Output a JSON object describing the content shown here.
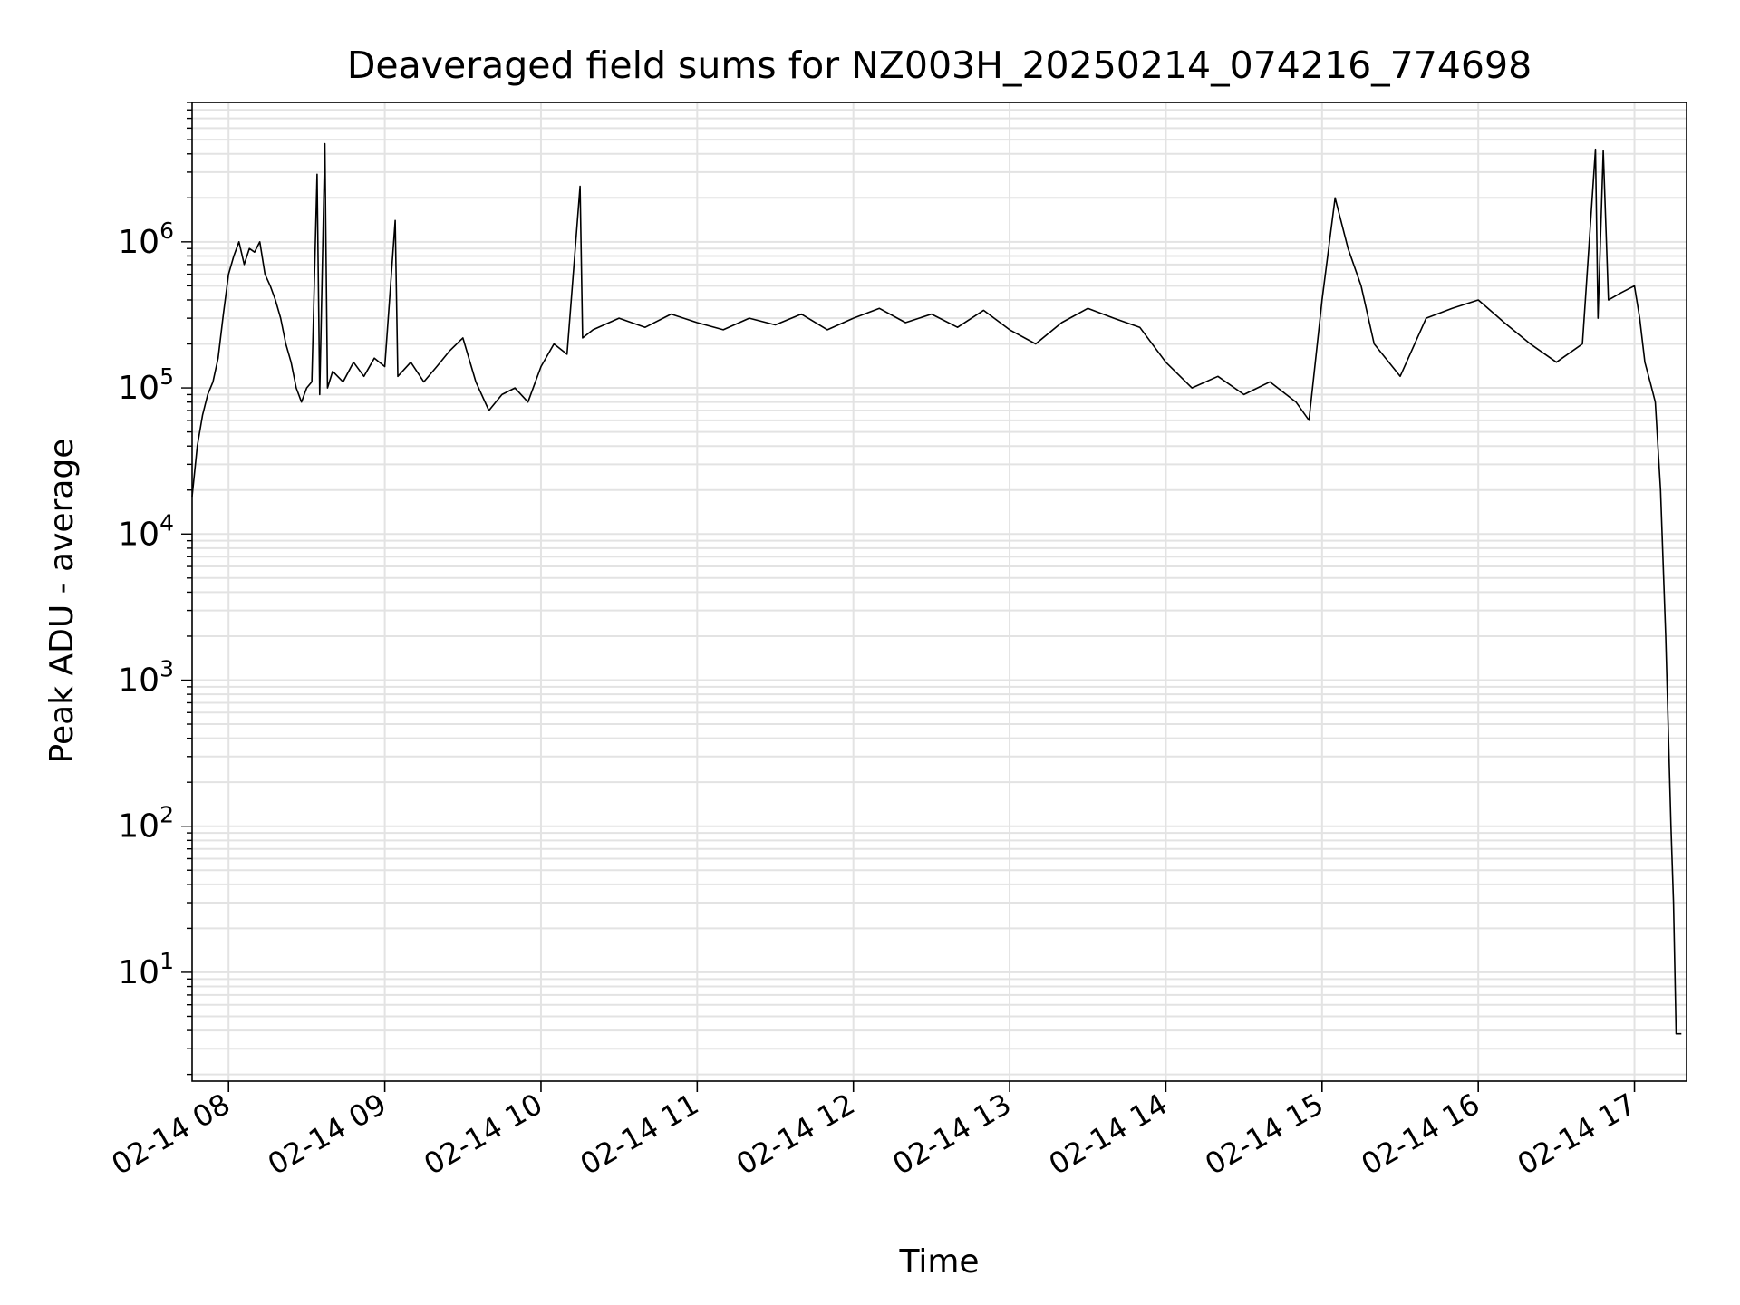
{
  "chart_data": {
    "type": "line",
    "title": "Deaveraged field sums for NZ003H_20250214_074216_774698",
    "xlabel": "Time",
    "ylabel": "Peak ADU - average",
    "yscale": "log",
    "grid": true,
    "legend": "none",
    "xlim": [
      "2025-02-14 07:46",
      "2025-02-14 17:20"
    ],
    "ylim": [
      1.8,
      9000000
    ],
    "x_ticks": [
      {
        "value": "2025-02-14 08:00",
        "label": "02-14 08"
      },
      {
        "value": "2025-02-14 09:00",
        "label": "02-14 09"
      },
      {
        "value": "2025-02-14 10:00",
        "label": "02-14 10"
      },
      {
        "value": "2025-02-14 11:00",
        "label": "02-14 11"
      },
      {
        "value": "2025-02-14 12:00",
        "label": "02-14 12"
      },
      {
        "value": "2025-02-14 13:00",
        "label": "02-14 13"
      },
      {
        "value": "2025-02-14 14:00",
        "label": "02-14 14"
      },
      {
        "value": "2025-02-14 15:00",
        "label": "02-14 15"
      },
      {
        "value": "2025-02-14 16:00",
        "label": "02-14 16"
      },
      {
        "value": "2025-02-14 17:00",
        "label": "02-14 17"
      }
    ],
    "y_ticks": [
      {
        "value": 10,
        "base": "10",
        "exp": "1"
      },
      {
        "value": 100,
        "base": "10",
        "exp": "2"
      },
      {
        "value": 1000,
        "base": "10",
        "exp": "3"
      },
      {
        "value": 10000,
        "base": "10",
        "exp": "4"
      },
      {
        "value": 100000,
        "base": "10",
        "exp": "5"
      },
      {
        "value": 1000000,
        "base": "10",
        "exp": "6"
      }
    ],
    "series": [
      {
        "color": "#000000",
        "points": [
          [
            "2025-02-14 07:46",
            18000
          ],
          [
            "2025-02-14 07:48",
            40000
          ],
          [
            "2025-02-14 07:50",
            65000
          ],
          [
            "2025-02-14 07:52",
            90000
          ],
          [
            "2025-02-14 07:54",
            110000
          ],
          [
            "2025-02-14 07:56",
            160000
          ],
          [
            "2025-02-14 07:58",
            320000
          ],
          [
            "2025-02-14 08:00",
            600000
          ],
          [
            "2025-02-14 08:02",
            800000
          ],
          [
            "2025-02-14 08:04",
            1000000
          ],
          [
            "2025-02-14 08:06",
            700000
          ],
          [
            "2025-02-14 08:08",
            900000
          ],
          [
            "2025-02-14 08:10",
            850000
          ],
          [
            "2025-02-14 08:12",
            1000000
          ],
          [
            "2025-02-14 08:14",
            600000
          ],
          [
            "2025-02-14 08:16",
            500000
          ],
          [
            "2025-02-14 08:18",
            400000
          ],
          [
            "2025-02-14 08:20",
            300000
          ],
          [
            "2025-02-14 08:22",
            200000
          ],
          [
            "2025-02-14 08:24",
            150000
          ],
          [
            "2025-02-14 08:26",
            100000
          ],
          [
            "2025-02-14 08:28",
            80000
          ],
          [
            "2025-02-14 08:30",
            100000
          ],
          [
            "2025-02-14 08:32",
            110000
          ],
          [
            "2025-02-14 08:34",
            2900000
          ],
          [
            "2025-02-14 08:35",
            90000
          ],
          [
            "2025-02-14 08:37",
            4700000
          ],
          [
            "2025-02-14 08:38",
            100000
          ],
          [
            "2025-02-14 08:40",
            130000
          ],
          [
            "2025-02-14 08:44",
            110000
          ],
          [
            "2025-02-14 08:48",
            150000
          ],
          [
            "2025-02-14 08:52",
            120000
          ],
          [
            "2025-02-14 08:56",
            160000
          ],
          [
            "2025-02-14 09:00",
            140000
          ],
          [
            "2025-02-14 09:04",
            1400000
          ],
          [
            "2025-02-14 09:05",
            120000
          ],
          [
            "2025-02-14 09:10",
            150000
          ],
          [
            "2025-02-14 09:15",
            110000
          ],
          [
            "2025-02-14 09:20",
            140000
          ],
          [
            "2025-02-14 09:25",
            180000
          ],
          [
            "2025-02-14 09:30",
            220000
          ],
          [
            "2025-02-14 09:35",
            110000
          ],
          [
            "2025-02-14 09:40",
            70000
          ],
          [
            "2025-02-14 09:45",
            90000
          ],
          [
            "2025-02-14 09:50",
            100000
          ],
          [
            "2025-02-14 09:55",
            80000
          ],
          [
            "2025-02-14 10:00",
            140000
          ],
          [
            "2025-02-14 10:05",
            200000
          ],
          [
            "2025-02-14 10:10",
            170000
          ],
          [
            "2025-02-14 10:15",
            2400000
          ],
          [
            "2025-02-14 10:16",
            220000
          ],
          [
            "2025-02-14 10:20",
            250000
          ],
          [
            "2025-02-14 10:30",
            300000
          ],
          [
            "2025-02-14 10:40",
            260000
          ],
          [
            "2025-02-14 10:50",
            320000
          ],
          [
            "2025-02-14 11:00",
            280000
          ],
          [
            "2025-02-14 11:10",
            250000
          ],
          [
            "2025-02-14 11:20",
            300000
          ],
          [
            "2025-02-14 11:30",
            270000
          ],
          [
            "2025-02-14 11:40",
            320000
          ],
          [
            "2025-02-14 11:50",
            250000
          ],
          [
            "2025-02-14 12:00",
            300000
          ],
          [
            "2025-02-14 12:10",
            350000
          ],
          [
            "2025-02-14 12:20",
            280000
          ],
          [
            "2025-02-14 12:30",
            320000
          ],
          [
            "2025-02-14 12:40",
            260000
          ],
          [
            "2025-02-14 12:50",
            340000
          ],
          [
            "2025-02-14 13:00",
            250000
          ],
          [
            "2025-02-14 13:10",
            200000
          ],
          [
            "2025-02-14 13:20",
            280000
          ],
          [
            "2025-02-14 13:30",
            350000
          ],
          [
            "2025-02-14 13:40",
            300000
          ],
          [
            "2025-02-14 13:50",
            260000
          ],
          [
            "2025-02-14 14:00",
            150000
          ],
          [
            "2025-02-14 14:10",
            100000
          ],
          [
            "2025-02-14 14:20",
            120000
          ],
          [
            "2025-02-14 14:30",
            90000
          ],
          [
            "2025-02-14 14:40",
            110000
          ],
          [
            "2025-02-14 14:50",
            80000
          ],
          [
            "2025-02-14 14:55",
            60000
          ],
          [
            "2025-02-14 15:00",
            400000
          ],
          [
            "2025-02-14 15:05",
            2000000
          ],
          [
            "2025-02-14 15:10",
            900000
          ],
          [
            "2025-02-14 15:15",
            500000
          ],
          [
            "2025-02-14 15:20",
            200000
          ],
          [
            "2025-02-14 15:30",
            120000
          ],
          [
            "2025-02-14 15:40",
            300000
          ],
          [
            "2025-02-14 15:50",
            350000
          ],
          [
            "2025-02-14 16:00",
            400000
          ],
          [
            "2025-02-14 16:10",
            280000
          ],
          [
            "2025-02-14 16:20",
            200000
          ],
          [
            "2025-02-14 16:30",
            150000
          ],
          [
            "2025-02-14 16:40",
            200000
          ],
          [
            "2025-02-14 16:45",
            4300000
          ],
          [
            "2025-02-14 16:46",
            300000
          ],
          [
            "2025-02-14 16:48",
            4200000
          ],
          [
            "2025-02-14 16:50",
            400000
          ],
          [
            "2025-02-14 16:55",
            450000
          ],
          [
            "2025-02-14 17:00",
            500000
          ],
          [
            "2025-02-14 17:02",
            300000
          ],
          [
            "2025-02-14 17:04",
            150000
          ],
          [
            "2025-02-14 17:06",
            110000
          ],
          [
            "2025-02-14 17:08",
            80000
          ],
          [
            "2025-02-14 17:10",
            20000
          ],
          [
            "2025-02-14 17:12",
            2000
          ],
          [
            "2025-02-14 17:14",
            100
          ],
          [
            "2025-02-14 17:15",
            30
          ],
          [
            "2025-02-14 17:16",
            3.8
          ],
          [
            "2025-02-14 17:18",
            3.8
          ]
        ]
      }
    ]
  }
}
